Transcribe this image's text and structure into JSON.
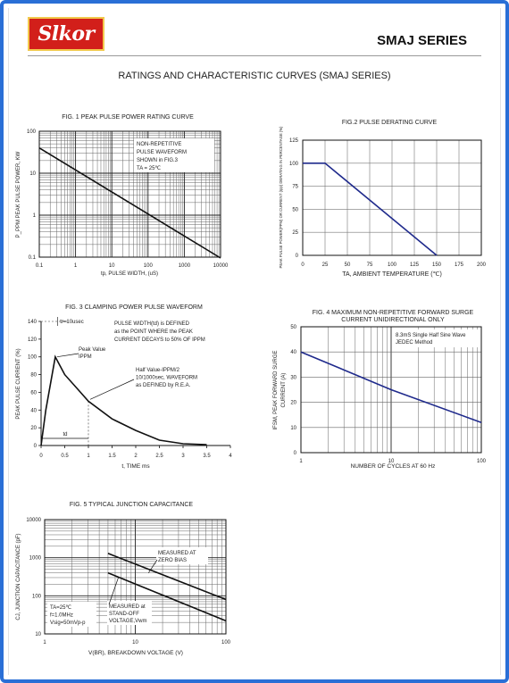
{
  "header": {
    "logo_text": "Slkor",
    "series": "SMAJ SERIES",
    "page_title": "RATINGS AND CHARACTERISTIC CURVES (SMAJ SERIES)"
  },
  "colors": {
    "frame": "#2a6fd6",
    "logo_bg": "#d21f1a",
    "curve_blue": "#1f2a8c",
    "curve_black": "#111111"
  },
  "chart_data": [
    {
      "type": "line",
      "title": "FIG. 1 PEAK PULSE POWER RATING CURVE",
      "xlabel": "tp, PULSE WIDTH, (uS)",
      "ylabel": "P_PPM PEAK PULSE POWER, KW",
      "x_scale": "log",
      "y_scale": "log",
      "xlim": [
        0.1,
        10000
      ],
      "ylim": [
        0.1,
        100
      ],
      "x_ticks": [
        "0.1",
        "1",
        "10",
        "100",
        "1000",
        "10000"
      ],
      "y_ticks": [
        "0.1",
        "1",
        "10",
        "100"
      ],
      "annotation": [
        "NON-REPETITIVE",
        "PULSE WAVEFORM",
        "SHOWN in FIG.3",
        "TA = 25℃"
      ],
      "series": [
        {
          "x": [
            0.1,
            10000
          ],
          "y": [
            40,
            0.095
          ]
        }
      ]
    },
    {
      "type": "line",
      "title": "FIG.2 PULSE DERATING CURVE",
      "xlabel": "TA, AMBIENT TEMPERATURE (℃)",
      "ylabel": "PEAK PULSE POWER(PPM) OR CURRENT (Ipp) DERATING IN PERCENTAGE (%)",
      "xlim": [
        0,
        200
      ],
      "ylim": [
        0,
        125
      ],
      "x_ticks": [
        "0",
        "25",
        "50",
        "75",
        "100",
        "125",
        "150",
        "175",
        "200"
      ],
      "y_ticks": [
        "0",
        "25",
        "50",
        "75",
        "100",
        "125"
      ],
      "series": [
        {
          "x": [
            0,
            25,
            150
          ],
          "y": [
            100,
            100,
            0
          ]
        }
      ]
    },
    {
      "type": "line",
      "title": "FIG. 3 CLAMPING POWER PULSE WAVEFORM",
      "xlabel": "t, TIME ms",
      "ylabel": "PEAK PULSE CURRENT (%)",
      "xlim": [
        0,
        4
      ],
      "ylim": [
        0,
        140
      ],
      "x_ticks": [
        "0",
        "0.5",
        "1",
        "1.5",
        "2",
        "2.5",
        "3",
        "3.5",
        "4"
      ],
      "y_ticks": [
        "0",
        "20",
        "40",
        "60",
        "80",
        "100",
        "120",
        "140"
      ],
      "annotations": {
        "tr": "tr=10usec",
        "def": [
          "PULSE WIDTH(td) is DEFINED",
          "as the POINT WHERE the PEAK",
          "CURRENT DECAYS to 50% OF IPPM"
        ],
        "peak": [
          "Peak Value",
          "IPPM"
        ],
        "half": [
          "Half Value-IPPM/2",
          "10/1000sec, WAVEFORM",
          "as DEFINED by R.E.A."
        ],
        "td": "td"
      },
      "series": [
        {
          "x": [
            0,
            0.1,
            0.3,
            0.5,
            0.75,
            1.0,
            1.5,
            2.0,
            2.5,
            3.0,
            3.5
          ],
          "y": [
            0,
            40,
            100,
            80,
            65,
            50,
            30,
            17,
            6,
            2,
            1
          ]
        }
      ]
    },
    {
      "type": "line",
      "title": [
        "FIG. 4 MAXIMUM NON-REPETITIVE FORWARD SURGE",
        "CURRENT UNIDIRECTIONAL ONLY"
      ],
      "xlabel": "NUMBER OF CYCLES AT 60 Hz",
      "ylabel": "IFSM, PEAK FORWARD SURGE CURRENT (A)",
      "x_scale": "log",
      "xlim": [
        1,
        100
      ],
      "ylim": [
        0,
        50
      ],
      "x_ticks": [
        "1",
        "10",
        "100"
      ],
      "y_ticks": [
        "0",
        "10",
        "20",
        "30",
        "40",
        "50"
      ],
      "annotation": [
        "8.3mS Single Half Sine Wave",
        "JEDEC Method"
      ],
      "series": [
        {
          "x": [
            1,
            10,
            100
          ],
          "y": [
            40,
            25,
            12
          ]
        }
      ]
    },
    {
      "type": "line",
      "title": "FIG. 5 TYPICAL JUNCTION CAPACITANCE",
      "xlabel": "V(BR), BREAKDOWN VOLTAGE (V)",
      "ylabel": "CJ, JUNCTION CAPACITANCE (pF)",
      "x_scale": "log",
      "y_scale": "log",
      "xlim": [
        1,
        100
      ],
      "ylim": [
        10,
        10000
      ],
      "x_ticks": [
        "1",
        "10",
        "100"
      ],
      "y_ticks": [
        "10",
        "100",
        "1000",
        "10000"
      ],
      "annotations": {
        "zero": [
          "MEASURED AT",
          "ZERO BIAS"
        ],
        "standoff": [
          "MEASURED at",
          "STAND-OFF",
          "VOLTAGE,Vwm"
        ],
        "conditions": [
          "TA=25℃",
          "f=1.0MHz",
          "Vsig=50mVp-p"
        ]
      },
      "series": [
        {
          "x": [
            5,
            100
          ],
          "y": [
            1300,
            80
          ]
        },
        {
          "x": [
            5,
            100
          ],
          "y": [
            400,
            22
          ]
        }
      ]
    }
  ]
}
